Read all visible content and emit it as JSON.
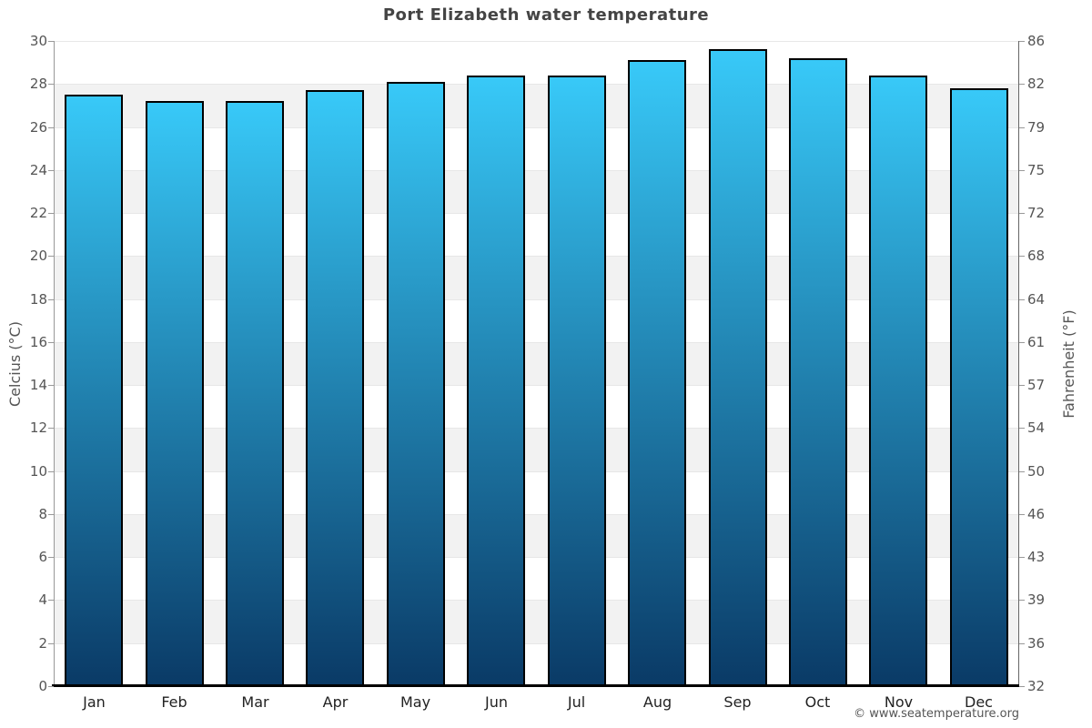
{
  "page": {
    "title": "Port Elizabeth water temperature",
    "footer": "© www.seatemperature.org"
  },
  "chart_data": {
    "type": "bar",
    "title": "Port Elizabeth water temperature",
    "categories": [
      "Jan",
      "Feb",
      "Mar",
      "Apr",
      "May",
      "Jun",
      "Jul",
      "Aug",
      "Sep",
      "Oct",
      "Nov",
      "Dec"
    ],
    "values": [
      27.5,
      27.2,
      27.2,
      27.7,
      28.1,
      28.4,
      28.4,
      29.1,
      29.6,
      29.2,
      28.4,
      27.8
    ],
    "ylabel_left": "Celcius (°C)",
    "ylabel_right": "Fahrenheit (°F)",
    "xlabel": "",
    "ylim": [
      0,
      30
    ],
    "celsius_ticks": [
      0,
      2,
      4,
      6,
      8,
      10,
      12,
      14,
      16,
      18,
      20,
      22,
      24,
      26,
      28,
      30
    ],
    "fahrenheit_ticks": [
      32,
      36,
      39,
      43,
      46,
      50,
      54,
      57,
      61,
      64,
      68,
      72,
      75,
      79,
      82,
      86
    ],
    "grid": "horizontal gridlines with alternating shaded bands every 2°C",
    "legend": "none",
    "colors": {
      "bar_gradient_top": "#38c9f8",
      "bar_gradient_bottom": "#0a3a66",
      "bar_border": "#000000",
      "band_fill": "#f2f2f2",
      "gridline": "#e7e7e7",
      "left_axis_line": "#999999",
      "right_axis_line": "#666666",
      "baseline": "#000000",
      "title_text": "#444444",
      "axis_text": "#555555",
      "month_text": "#222222",
      "footer_text": "#555555"
    }
  }
}
